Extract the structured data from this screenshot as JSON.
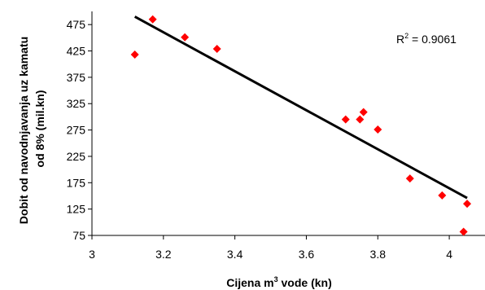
{
  "chart_data": {
    "type": "scatter",
    "title": "",
    "xlabel": {
      "prefix": "Cijena m",
      "sup": "3",
      "suffix": " vode (kn)"
    },
    "ylabel": {
      "line1": "Dobit od navodnjavanja uz kamatu",
      "line2": "od 8% (mil.kn)"
    },
    "xlim": [
      3,
      4.1
    ],
    "ylim": [
      75,
      500
    ],
    "xticks": [
      3,
      3.2,
      3.4,
      3.6,
      3.8,
      4
    ],
    "xtick_labels": [
      "3",
      "3.2",
      "3.4",
      "3.6",
      "3.8",
      "4"
    ],
    "yticks": [
      75,
      125,
      175,
      225,
      275,
      325,
      375,
      425,
      475
    ],
    "ytick_labels": [
      "75",
      "125",
      "175",
      "225",
      "275",
      "325",
      "375",
      "425",
      "475"
    ],
    "grid": false,
    "marker_color": "#ff0000",
    "trendline_color": "#000000",
    "points": [
      {
        "x": 3.12,
        "y": 418
      },
      {
        "x": 3.17,
        "y": 485
      },
      {
        "x": 3.26,
        "y": 451
      },
      {
        "x": 3.35,
        "y": 429
      },
      {
        "x": 3.71,
        "y": 295
      },
      {
        "x": 3.75,
        "y": 295
      },
      {
        "x": 3.76,
        "y": 309
      },
      {
        "x": 3.8,
        "y": 276
      },
      {
        "x": 3.89,
        "y": 183
      },
      {
        "x": 3.98,
        "y": 151
      },
      {
        "x": 4.05,
        "y": 135
      },
      {
        "x": 4.04,
        "y": 82
      }
    ],
    "trendline": {
      "x": [
        3.12,
        4.05
      ],
      "y": [
        490,
        146
      ]
    },
    "r2": {
      "prefix": "R",
      "sup": "2",
      "suffix": " = 0.9061"
    }
  }
}
